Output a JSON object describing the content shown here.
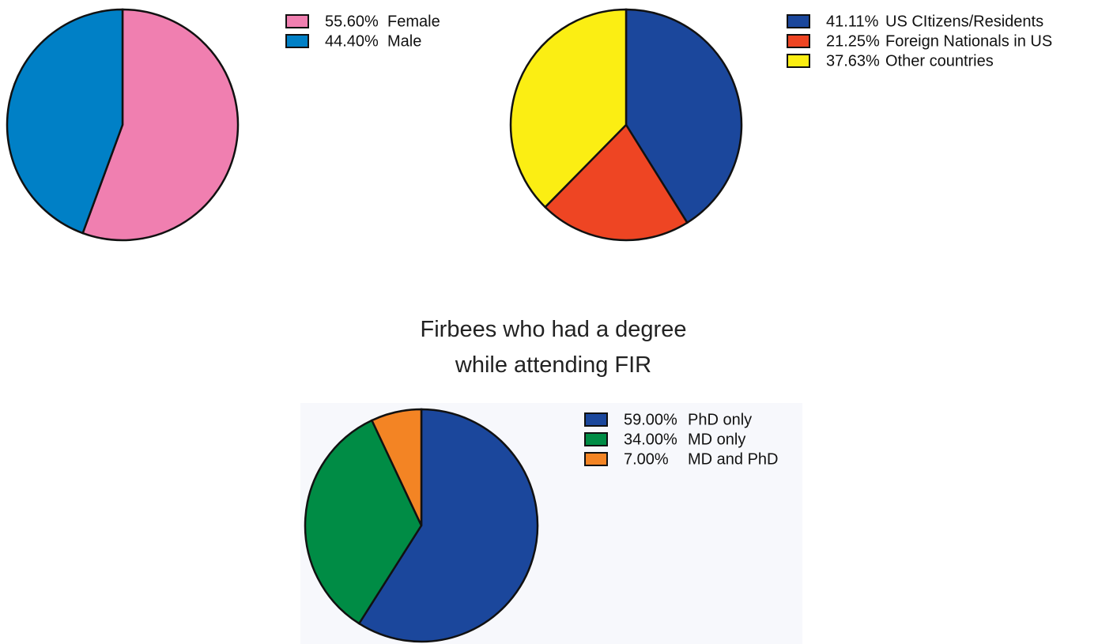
{
  "chart_data": [
    {
      "type": "pie",
      "categories": [
        "Female",
        "Male"
      ],
      "values": [
        55.6,
        44.4
      ],
      "value_labels": [
        "55.60%",
        "44.40%"
      ],
      "colors": [
        "#f07fb0",
        "#0080c6"
      ]
    },
    {
      "type": "pie",
      "categories": [
        "US CItizens/Residents",
        "Foreign Nationals in US",
        "Other countries"
      ],
      "values": [
        41.11,
        21.25,
        37.63
      ],
      "value_labels": [
        "41.11%",
        "21.25%",
        "37.63%"
      ],
      "colors": [
        "#1b479c",
        "#ee4523",
        "#fbee13"
      ]
    },
    {
      "type": "pie",
      "title": "Firbees who had a degree while attending FIR",
      "categories": [
        "PhD only",
        "MD only",
        "MD and PhD"
      ],
      "values": [
        59,
        34,
        7
      ],
      "value_labels": [
        "59.00%",
        "34.00%",
        "7.00%"
      ],
      "colors": [
        "#1b479c",
        "#008c45",
        "#f38424"
      ]
    }
  ]
}
